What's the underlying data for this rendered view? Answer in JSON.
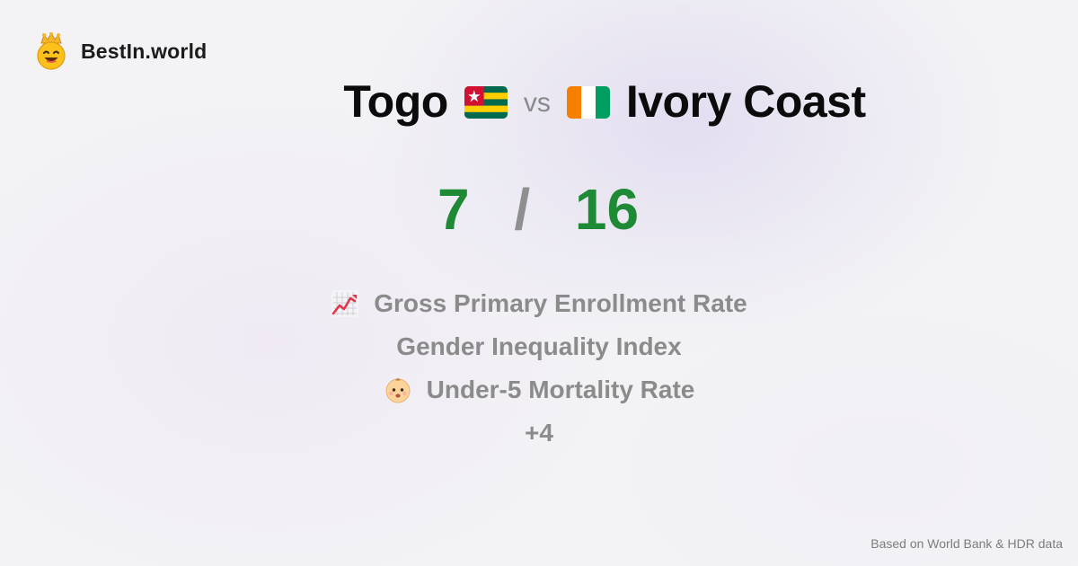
{
  "brand": {
    "name": "BestIn.world",
    "logo_icon": "crowned-smiley-icon"
  },
  "comparison": {
    "left": {
      "country": "Togo",
      "flag_icon": "togo-flag-icon",
      "score": "7"
    },
    "vs_label": "vs",
    "right": {
      "country": "Ivory Coast",
      "flag_icon": "ivory-coast-flag-icon",
      "score": "16"
    },
    "separator": "/"
  },
  "metrics": [
    {
      "label": "Gross Primary Enrollment Rate",
      "icon": "chart-increasing-icon"
    },
    {
      "label": "Gender Inequality Index",
      "icon": ""
    },
    {
      "label": "Under-5 Mortality Rate",
      "icon": "baby-face-icon"
    }
  ],
  "more_label": "+4",
  "footer": {
    "source_note": "Based on World Bank & HDR data"
  },
  "colors": {
    "score_green": "#1e8a35",
    "muted_gray": "#8b8b8b",
    "togo_green": "#006a4e",
    "togo_yellow": "#ffce00",
    "togo_red": "#d21034",
    "ivory_orange": "#f77f00",
    "ivory_green": "#009e60"
  }
}
